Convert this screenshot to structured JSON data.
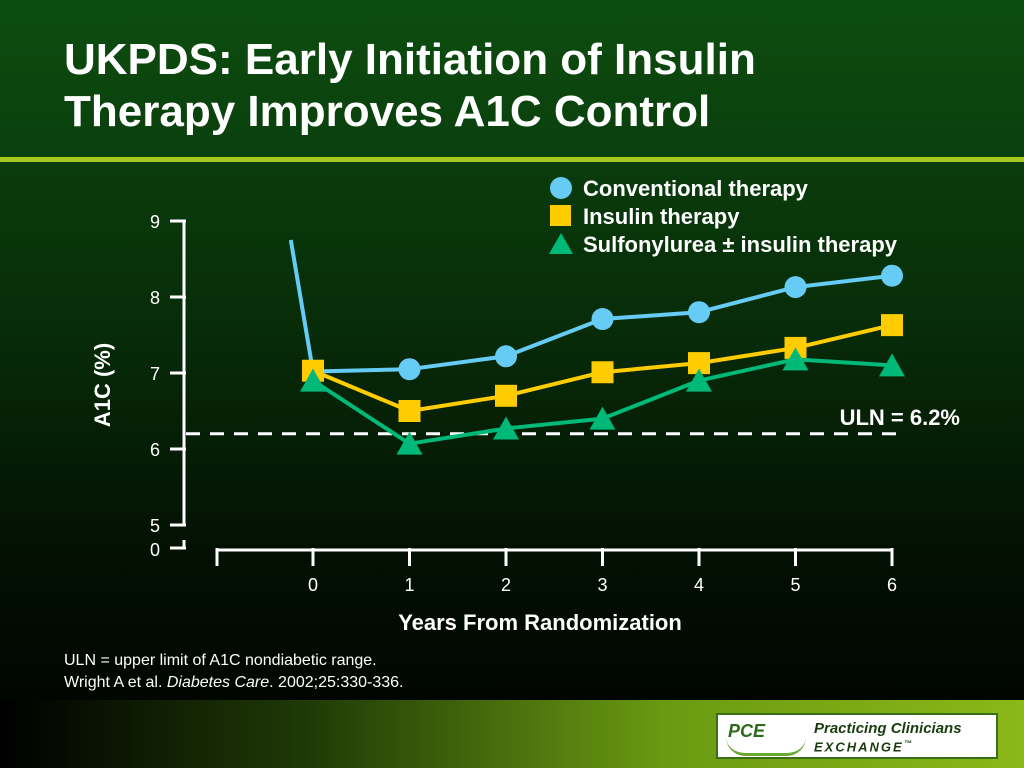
{
  "slide": {
    "title_line1": "UKPDS: Early Initiation of Insulin",
    "title_line2": "Therapy Improves A1C Control",
    "footnote_line1": "ULN = upper limit of A1C nondiabetic range.",
    "footnote_author": "Wright A et al. ",
    "footnote_journal": "Diabetes Care",
    "footnote_citation": ". 2002;25:330-336.",
    "logo_abbrev": "PCE",
    "logo_name": "Practicing Clinicians",
    "logo_sub": "EXCHANGE",
    "logo_tm": "™"
  },
  "colors": {
    "background": "#0a3d0c",
    "accent_rule": "#a5c820",
    "conventional": "#66ccf5",
    "insulin": "#ffcc00",
    "sulfonylurea": "#00b877"
  },
  "chart_data": {
    "type": "line",
    "xlabel": "Years From Randomization",
    "ylabel": "A1C (%)",
    "x": [
      0,
      1,
      2,
      3,
      4,
      5,
      6
    ],
    "x_ticks": [
      "0",
      "1",
      "2",
      "3",
      "4",
      "5",
      "6"
    ],
    "y_ticks": [
      "5",
      "6",
      "7",
      "8",
      "9"
    ],
    "y_break_label": "0",
    "ylim": [
      5,
      9
    ],
    "legend_position": "top-right",
    "series": [
      {
        "name": "Conventional therapy",
        "marker": "circle",
        "color": "#66ccf5",
        "lead_in": {
          "x": -0.23,
          "y": 8.75
        },
        "values": [
          7.02,
          7.05,
          7.22,
          7.71,
          7.8,
          8.13,
          8.28
        ]
      },
      {
        "name": "Insulin therapy",
        "marker": "square",
        "color": "#ffcc00",
        "values": [
          7.03,
          6.5,
          6.7,
          7.01,
          7.13,
          7.33,
          7.63
        ]
      },
      {
        "name": "Sulfonylurea ± insulin therapy",
        "marker": "triangle",
        "color": "#00b877",
        "values": [
          6.9,
          6.07,
          6.27,
          6.4,
          6.9,
          7.18,
          7.1
        ]
      }
    ],
    "reference_line": {
      "y": 6.2,
      "label": "ULN = 6.2%",
      "style": "dashed"
    }
  }
}
